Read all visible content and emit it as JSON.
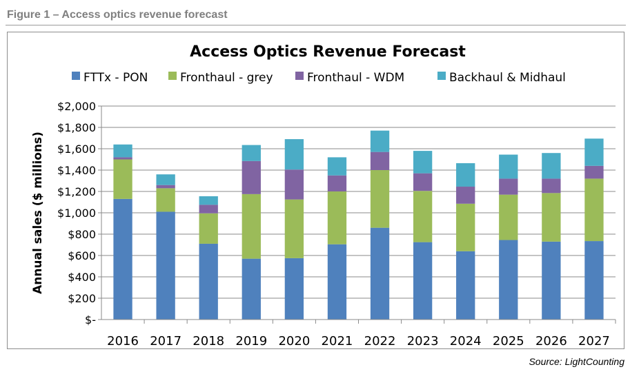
{
  "figure_label": "Figure 1 – Access optics revenue forecast",
  "source": "Source: LightCounting",
  "chart_data": {
    "type": "bar",
    "stacked": true,
    "title": "Access Optics Revenue Forecast",
    "xlabel": "",
    "ylabel": "Annual sales ($ millions)",
    "ylim": [
      0,
      2000
    ],
    "ytick_step": 200,
    "ytick_labels": [
      "$-",
      "$200",
      "$400",
      "$600",
      "$800",
      "$1,000",
      "$1,200",
      "$1,400",
      "$1,600",
      "$1,800",
      "$2,000"
    ],
    "grid": true,
    "legend_position": "top",
    "categories": [
      "2016",
      "2017",
      "2018",
      "2019",
      "2020",
      "2021",
      "2022",
      "2023",
      "2024",
      "2025",
      "2026",
      "2027"
    ],
    "series": [
      {
        "name": "FTTx - PON",
        "color": "#4f81bd",
        "values": [
          1130,
          1010,
          710,
          570,
          575,
          705,
          860,
          725,
          640,
          745,
          730,
          735
        ]
      },
      {
        "name": "Fronthaul - grey",
        "color": "#9bbb59",
        "values": [
          370,
          220,
          285,
          605,
          550,
          495,
          540,
          480,
          445,
          425,
          455,
          585
        ]
      },
      {
        "name": "Fronthaul - WDM",
        "color": "#8064a2",
        "values": [
          20,
          30,
          80,
          310,
          280,
          150,
          170,
          165,
          160,
          150,
          135,
          120
        ]
      },
      {
        "name": "Backhaul & Midhaul",
        "color": "#4bacc6",
        "values": [
          120,
          100,
          80,
          150,
          285,
          170,
          200,
          210,
          220,
          225,
          240,
          255
        ]
      }
    ]
  }
}
